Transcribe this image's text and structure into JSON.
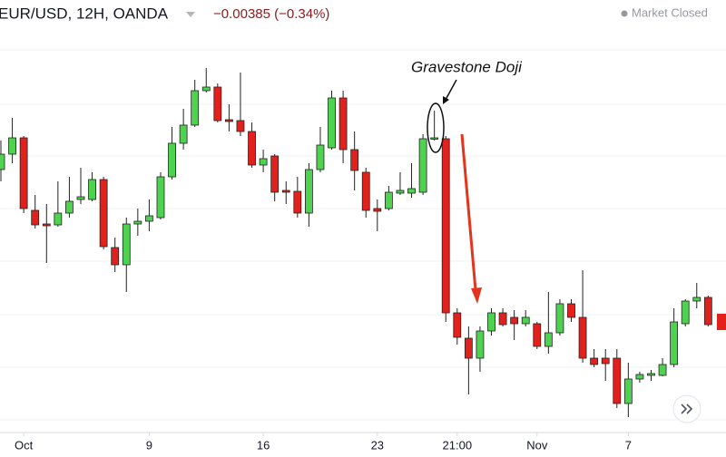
{
  "chart_data": {
    "type": "candlestick",
    "title": "EUR/USD, 12H, OANDA",
    "change": "−0.00385 (−0.34%)",
    "status": "Market Closed",
    "annotation": "Gravestone Doji",
    "up_color": "#4fd24f",
    "down_color": "#e3211c",
    "ylim": [
      1.163,
      1.1865
    ],
    "categories": [
      null,
      null,
      "Oct",
      null,
      null,
      null,
      null,
      null,
      null,
      null,
      null,
      null,
      null,
      "9",
      null,
      null,
      null,
      null,
      null,
      null,
      null,
      null,
      null,
      "16",
      null,
      null,
      null,
      null,
      null,
      null,
      null,
      null,
      null,
      "23",
      null,
      null,
      null,
      null,
      null,
      null,
      "21:00",
      null,
      null,
      null,
      null,
      null,
      null,
      "Nov",
      null,
      null,
      null,
      null,
      null,
      null,
      null,
      "7",
      null,
      null,
      null,
      null,
      null,
      null,
      null
    ],
    "open": [
      1.17715,
      1.178,
      1.1789,
      1.1749,
      1.17415,
      1.1741,
      1.17475,
      1.1755,
      1.1755,
      1.1766,
      1.17285,
      1.1719,
      1.17415,
      1.1743,
      1.1745,
      1.17675,
      1.1786,
      1.1796,
      1.1815,
      1.1817,
      1.1799,
      1.17985,
      1.17925,
      1.1774,
      1.1779,
      1.176,
      1.17595,
      1.17475,
      1.17715,
      1.17835,
      1.1811,
      1.17825,
      1.177,
      1.175,
      1.175,
      1.17585,
      1.17585,
      1.1759,
      1.17885,
      1.17885,
      1.16925,
      1.16785,
      1.16675,
      1.16825,
      1.16925,
      1.169,
      1.16865,
      1.16865,
      1.1674,
      1.16815,
      1.16975,
      1.169,
      1.16675,
      1.16675,
      1.16675,
      1.16425,
      1.1656,
      1.1658,
      1.1658,
      1.1664,
      1.16865,
      1.1699,
      1.1701
    ],
    "high": [
      1.17875,
      1.18,
      1.179,
      1.17575,
      1.17525,
      1.1765,
      1.17675,
      1.17725,
      1.177,
      1.17675,
      1.1734,
      1.1745,
      1.175,
      1.1755,
      1.177,
      1.1795,
      1.1805,
      1.1821,
      1.18275,
      1.1819,
      1.18075,
      1.1825,
      1.17975,
      1.17825,
      1.178,
      1.1765,
      1.17675,
      1.1775,
      1.1795,
      1.1815,
      1.1815,
      1.17925,
      1.17725,
      1.1755,
      1.17625,
      1.177,
      1.1775,
      1.1791,
      1.1804,
      1.179,
      1.1695,
      1.1685,
      1.1685,
      1.1695,
      1.1695,
      1.1694,
      1.1694,
      1.16875,
      1.1704,
      1.17,
      1.17,
      1.1716,
      1.16725,
      1.16725,
      1.16725,
      1.1665,
      1.166,
      1.1661,
      1.16675,
      1.1695,
      1.17,
      1.1709,
      1.1702
    ],
    "low": [
      1.1765,
      1.1775,
      1.17475,
      1.1739,
      1.172,
      1.174,
      1.1745,
      1.17525,
      1.1754,
      1.17275,
      1.1715,
      1.1704,
      1.1735,
      1.17375,
      1.1744,
      1.1766,
      1.17825,
      1.1795,
      1.1814,
      1.17975,
      1.17925,
      1.179,
      1.17725,
      1.177,
      1.1754,
      1.17525,
      1.1745,
      1.174,
      1.177,
      1.17825,
      1.1775,
      1.176,
      1.1745,
      1.17375,
      1.1749,
      1.17575,
      1.1756,
      1.17575,
      1.17875,
      1.16875,
      1.1675,
      1.16475,
      1.166,
      1.168,
      1.1685,
      1.16775,
      1.1685,
      1.16725,
      1.167,
      1.168,
      1.16875,
      1.1665,
      1.16625,
      1.1655,
      1.164,
      1.1635,
      1.1654,
      1.1655,
      1.16575,
      1.16625,
      1.1685,
      1.1695,
      1.1685
    ],
    "close": [
      1.178,
      1.1789,
      1.175,
      1.1741,
      1.17405,
      1.17475,
      1.1754,
      1.17565,
      1.1766,
      1.1729,
      1.1719,
      1.17415,
      1.1743,
      1.1746,
      1.17675,
      1.1786,
      1.1796,
      1.1815,
      1.1817,
      1.17985,
      1.1798,
      1.17925,
      1.1774,
      1.17775,
      1.1759,
      1.1759,
      1.17475,
      1.17715,
      1.1785,
      1.1811,
      1.17825,
      1.1771,
      1.1749,
      1.17485,
      1.1759,
      1.176,
      1.1761,
      1.17885,
      1.1789,
      1.16925,
      1.1679,
      1.16675,
      1.16825,
      1.16925,
      1.1686,
      1.16865,
      1.169,
      1.1674,
      1.16815,
      1.16975,
      1.169,
      1.16675,
      1.1664,
      1.16645,
      1.16425,
      1.1656,
      1.16585,
      1.1659,
      1.1664,
      1.16875,
      1.1699,
      1.1701,
      1.1686
    ]
  }
}
